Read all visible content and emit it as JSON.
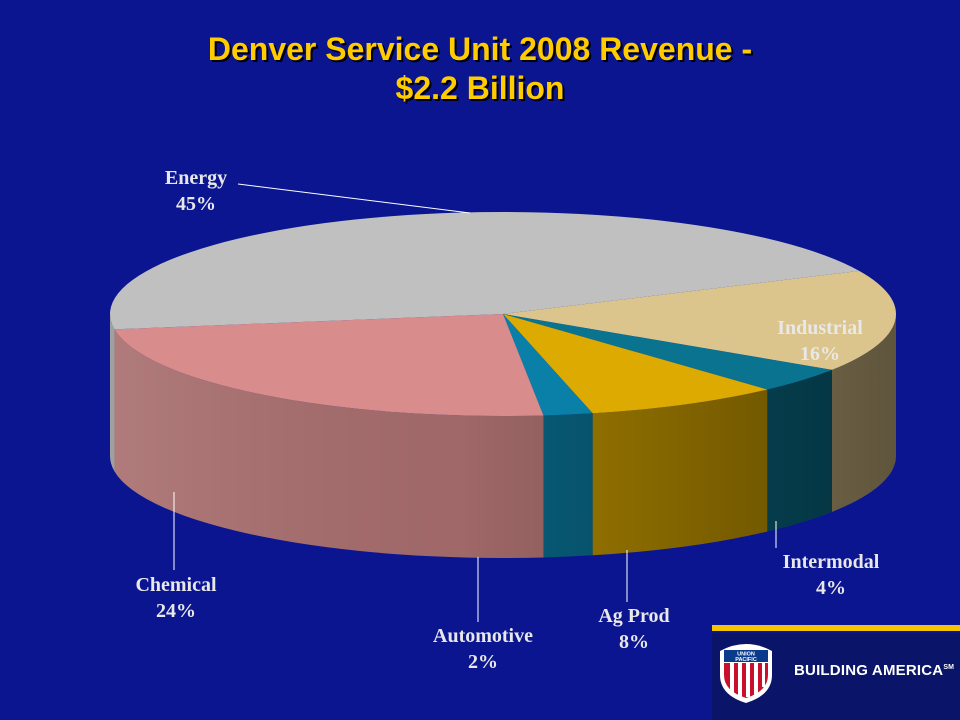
{
  "chart_data": {
    "type": "pie",
    "title": [
      "Denver Service Unit 2008 Revenue -",
      "$2.2 Billion"
    ],
    "slices": [
      {
        "label": "Energy",
        "value_label": "45%",
        "value": 45,
        "color": "#c0c0c0"
      },
      {
        "label": "Industrial",
        "value_label": "16%",
        "value": 16,
        "color": "#dcc58c"
      },
      {
        "label": "Intermodal",
        "value_label": "4%",
        "value": 4,
        "color": "#0a7390"
      },
      {
        "label": "Ag Prod",
        "value_label": "8%",
        "value": 8,
        "color": "#dcaa00"
      },
      {
        "label": "Automotive",
        "value_label": "2%",
        "value": 2,
        "color": "#0a80a8"
      },
      {
        "label": "Chemical",
        "value_label": "24%",
        "value": 24,
        "color": "#d88c8c"
      }
    ],
    "style": "3d-pie"
  },
  "branding": {
    "logo_text": [
      "UNION",
      "PACIFIC"
    ],
    "tagline": "BUILDING AMERICA",
    "tagline_mark": "SM"
  },
  "colors": {
    "background": "#0b1590",
    "title": "#ffcc00",
    "label": "#e8e8e8",
    "footer_band": "#f5c400",
    "footer": "#0a1468"
  }
}
